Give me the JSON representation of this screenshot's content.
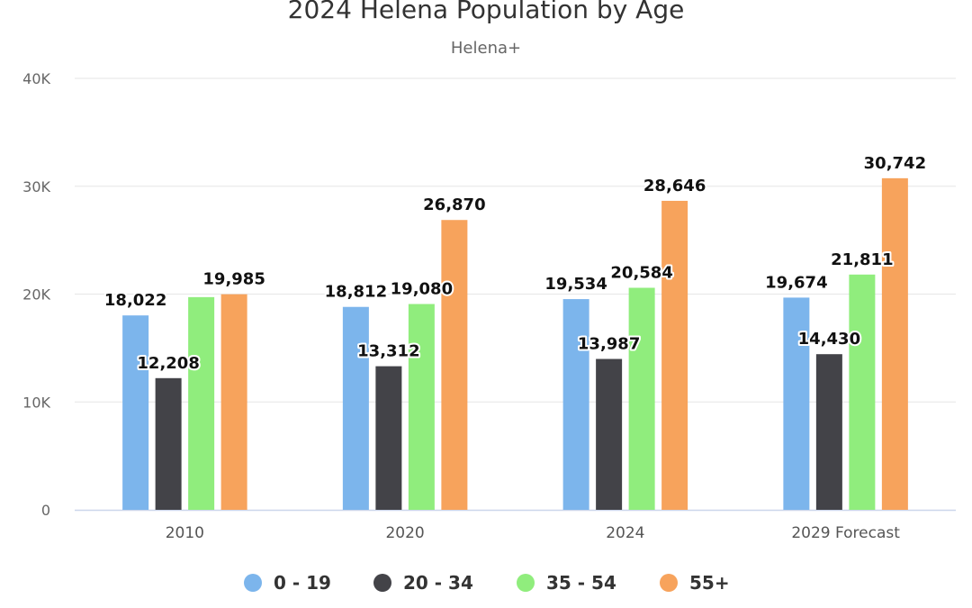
{
  "chart_data": {
    "type": "bar",
    "title": "2024 Helena Population by Age",
    "subtitle": "Helena+",
    "categories": [
      "2010",
      "2020",
      "2024",
      "2029 Forecast"
    ],
    "series": [
      {
        "name": "0 - 19",
        "color": "#7cb5ec",
        "values": [
          18022,
          18812,
          19534,
          19674
        ]
      },
      {
        "name": "20 - 34",
        "color": "#434348",
        "values": [
          12208,
          13312,
          13987,
          14430
        ]
      },
      {
        "name": "35 - 54",
        "color": "#90ed7d",
        "values": [
          19719,
          19080,
          20584,
          21811
        ]
      },
      {
        "name": "55+",
        "color": "#f7a35c",
        "values": [
          19985,
          26870,
          28646,
          30742
        ]
      }
    ],
    "data_labels": [
      [
        "18,022",
        "18,812",
        "19,534",
        "19,674"
      ],
      [
        "12,208",
        "13,312",
        "13,987",
        "14,430"
      ],
      [
        "",
        "19,080",
        "20,584",
        "21,811"
      ],
      [
        "19,985",
        "26,870",
        "28,646",
        "30,742"
      ]
    ],
    "ylim": [
      0,
      40000
    ],
    "yticks": [
      {
        "value": 0,
        "label": "0"
      },
      {
        "value": 10000,
        "label": "10K"
      },
      {
        "value": 20000,
        "label": "20K"
      },
      {
        "value": 30000,
        "label": "30K"
      },
      {
        "value": 40000,
        "label": "40K"
      }
    ],
    "grid": true,
    "legend_position": "bottom-center"
  }
}
